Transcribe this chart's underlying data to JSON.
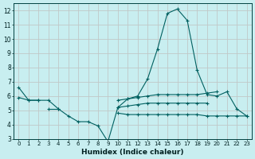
{
  "xlabel": "Humidex (Indice chaleur)",
  "background_color": "#c8eef0",
  "grid_color": "#c0c8c8",
  "line_color": "#006060",
  "xlim": [
    -0.5,
    23.5
  ],
  "ylim": [
    3,
    12.5
  ],
  "yticks": [
    3,
    4,
    5,
    6,
    7,
    8,
    9,
    10,
    11,
    12
  ],
  "xticks": [
    0,
    1,
    2,
    3,
    4,
    5,
    6,
    7,
    8,
    9,
    10,
    11,
    12,
    13,
    14,
    15,
    16,
    17,
    18,
    19,
    20,
    21,
    22,
    23
  ],
  "series": [
    {
      "x": [
        0,
        1,
        2,
        3,
        4,
        5,
        6,
        7,
        8,
        9,
        10,
        11,
        12,
        13,
        14,
        15,
        16,
        17,
        18,
        19,
        20,
        21,
        22,
        23
      ],
      "y": [
        6.6,
        5.7,
        5.7,
        5.7,
        5.1,
        4.6,
        4.2,
        4.2,
        3.9,
        2.8,
        5.2,
        5.8,
        6.0,
        7.2,
        9.3,
        11.8,
        12.1,
        11.3,
        7.8,
        6.1,
        6.0,
        6.3,
        5.1,
        4.6
      ]
    },
    {
      "x": [
        0,
        1,
        2,
        3,
        4,
        5,
        6,
        7,
        8,
        9,
        10,
        11,
        12,
        13,
        14,
        15,
        16,
        17,
        18,
        19,
        20,
        21,
        22,
        23
      ],
      "y": [
        5.9,
        5.7,
        5.7,
        null,
        null,
        null,
        null,
        null,
        null,
        null,
        5.7,
        5.8,
        5.9,
        6.0,
        6.1,
        6.1,
        6.1,
        6.1,
        6.1,
        6.2,
        6.3,
        null,
        null,
        null
      ]
    },
    {
      "x": [
        0,
        1,
        2,
        3,
        4,
        5,
        6,
        7,
        8,
        9,
        10,
        11,
        12,
        13,
        14,
        15,
        16,
        17,
        18,
        19,
        20,
        21,
        22,
        23
      ],
      "y": [
        null,
        null,
        null,
        5.1,
        5.1,
        null,
        null,
        null,
        null,
        null,
        5.2,
        5.3,
        5.4,
        5.5,
        5.5,
        5.5,
        5.5,
        5.5,
        5.5,
        5.5,
        null,
        null,
        null,
        null
      ]
    },
    {
      "x": [
        0,
        1,
        2,
        3,
        4,
        5,
        6,
        7,
        8,
        9,
        10,
        11,
        12,
        13,
        14,
        15,
        16,
        17,
        18,
        19,
        20,
        21,
        22,
        23
      ],
      "y": [
        null,
        null,
        null,
        null,
        null,
        null,
        null,
        null,
        null,
        null,
        4.8,
        4.7,
        4.7,
        4.7,
        4.7,
        4.7,
        4.7,
        4.7,
        4.7,
        4.6,
        4.6,
        4.6,
        4.6,
        4.6
      ]
    }
  ]
}
